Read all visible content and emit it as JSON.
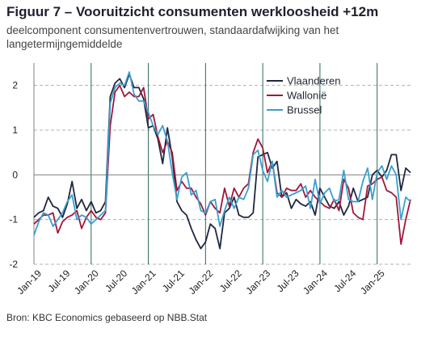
{
  "header": {
    "title": "Figuur 7 – Vooruitzicht consumenten werkloosheid +12m",
    "subtitle": "deelcomponent consumentenvertrouwen, standaardafwijking van het langetermijngemiddelde"
  },
  "footer": {
    "source": "Bron: KBC Economics gebaseerd op NBB.Stat"
  },
  "colors": {
    "vlaanderen": "#1f2740",
    "wallonie": "#a0173a",
    "brussel": "#3a9fd0",
    "grid": "#b0b0b0",
    "vline": "#2a6a5a"
  },
  "chart_data": {
    "type": "line",
    "title": "Figuur 7 – Vooruitzicht consumenten werkloosheid +12m",
    "xlabel": "",
    "ylabel": "",
    "ylim": [
      -2,
      2.5
    ],
    "yticks": [
      -2,
      -1,
      0,
      1,
      2
    ],
    "grid": "horizontal dashed",
    "legend": "top-right",
    "x_tick_labels": [
      "Jan-19",
      "Jul-19",
      "Jan-20",
      "Jul-20",
      "Jan-21",
      "Jul-21",
      "Jan-22",
      "Jul-22",
      "Jan-23",
      "Jul-23",
      "Jan-24",
      "Jul-24",
      "Jan-25"
    ],
    "x_start": "Jan-19",
    "x_end": "Apr-25",
    "series": [
      {
        "name": "Vlaanderen",
        "values": [
          -0.95,
          -0.85,
          -0.8,
          -0.5,
          -0.7,
          -0.75,
          -0.95,
          -0.65,
          -0.15,
          -0.75,
          -0.55,
          -0.8,
          -0.6,
          -0.85,
          -0.8,
          -0.6,
          1.75,
          2.05,
          2.15,
          1.95,
          2.25,
          1.95,
          1.95,
          1.7,
          1.05,
          1.1,
          0.8,
          0.25,
          1.05,
          0.4,
          -0.6,
          -0.8,
          -0.9,
          -1.2,
          -1.45,
          -1.65,
          -1.5,
          -1.1,
          -1.2,
          -1.65,
          -0.85,
          -0.75,
          -0.5,
          -0.9,
          -0.95,
          -0.95,
          -0.85,
          0.4,
          0.45,
          0.5,
          0.15,
          0.3,
          -0.5,
          -0.4,
          -0.75,
          -0.55,
          -0.65,
          -0.7,
          -0.6,
          -0.9,
          -0.3,
          -0.5,
          -0.7,
          -0.75,
          -0.6,
          -0.9,
          -0.7,
          -0.3,
          -0.6,
          -0.55,
          -0.5,
          0.0,
          0.1,
          -0.05,
          0.1,
          0.45,
          0.45,
          -0.35,
          0.15,
          0.05
        ]
      },
      {
        "name": "Wallonië",
        "values": [
          -1.1,
          -1.0,
          -0.9,
          -0.9,
          -0.85,
          -1.3,
          -1.05,
          -0.95,
          -0.9,
          -0.8,
          -1.2,
          -0.95,
          -0.8,
          -0.95,
          -1.0,
          -0.85,
          1.1,
          1.85,
          2.0,
          1.75,
          1.85,
          1.75,
          1.75,
          1.95,
          1.25,
          1.35,
          0.85,
          0.5,
          0.75,
          0.5,
          -0.35,
          -0.15,
          -0.3,
          -0.3,
          -0.5,
          -0.65,
          -0.9,
          -0.6,
          -0.75,
          -0.85,
          -0.3,
          -0.7,
          -0.3,
          -0.5,
          -0.3,
          -0.2,
          0.5,
          0.8,
          0.6,
          0.05,
          0.3,
          -0.4,
          -0.5,
          -0.3,
          -0.35,
          -0.35,
          -0.2,
          -0.5,
          -0.35,
          -0.5,
          -0.6,
          -0.7,
          -0.75,
          -0.55,
          -0.8,
          -0.1,
          -0.3,
          -0.85,
          -0.95,
          -1.0,
          -0.25,
          -0.2,
          -0.1,
          -0.05,
          -0.35,
          -0.4,
          -0.5,
          -1.55,
          -1.0,
          -0.55
        ]
      },
      {
        "name": "Brussel",
        "values": [
          -1.35,
          -1.05,
          -0.85,
          -0.9,
          -1.15,
          -1.0,
          -0.85,
          -0.6,
          -0.45,
          -1.0,
          -0.9,
          -0.95,
          -1.1,
          -1.0,
          -0.9,
          -0.8,
          1.6,
          1.95,
          2.05,
          2.0,
          2.3,
          1.8,
          1.65,
          1.65,
          1.4,
          1.1,
          0.9,
          1.1,
          0.75,
          0.05,
          -0.55,
          -0.05,
          0.05,
          -0.45,
          -0.35,
          -0.8,
          -0.85,
          -0.6,
          -0.55,
          -1.15,
          -0.8,
          -0.5,
          -0.75,
          -0.5,
          -0.55,
          -0.3,
          0.45,
          0.55,
          0.1,
          -0.15,
          0.3,
          -0.5,
          -0.35,
          -0.5,
          -0.45,
          -0.4,
          -0.35,
          -0.25,
          -0.75,
          -0.1,
          -0.65,
          -0.4,
          -0.3,
          -0.6,
          -0.55,
          0.1,
          -0.55,
          -0.6,
          -0.6,
          -0.15,
          0.15,
          -0.55,
          0.05,
          0.2,
          -0.1,
          0.2,
          0.0,
          -1.0,
          -0.5,
          -0.6
        ]
      }
    ]
  }
}
